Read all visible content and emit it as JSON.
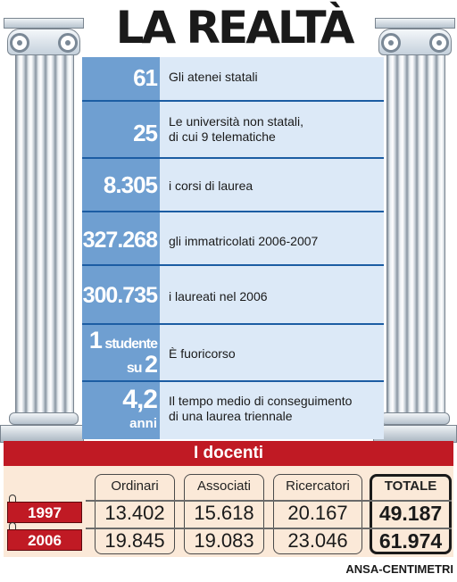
{
  "title": "LA REALTÀ",
  "facts": [
    {
      "num": "61",
      "text": "Gli atenei statali"
    },
    {
      "num": "25",
      "text": "Le università non statali,",
      "text2": "di cui 9 telematiche"
    },
    {
      "num": "8.305",
      "text": "i corsi di laurea"
    },
    {
      "num": "327.268",
      "text": "gli immatricolati 2006-2007"
    },
    {
      "num": "300.735",
      "text": "i laureati nel 2006"
    },
    {
      "num_a": "1",
      "num_b": "studente",
      "num_c": "su",
      "num_d": "2",
      "text": "È fuoricorso"
    },
    {
      "num": "4,2",
      "num_unit": "anni",
      "text": "Il tempo medio di conseguimento",
      "text2": "di una laurea triennale"
    }
  ],
  "docenti": {
    "heading": "I docenti",
    "columns": [
      "Ordinari",
      "Associati",
      "Ricercatori",
      "TOTALE"
    ],
    "rows": [
      {
        "year": "1997",
        "values": [
          "13.402",
          "15.618",
          "20.167",
          "49.187"
        ]
      },
      {
        "year": "2006",
        "values": [
          "19.845",
          "19.083",
          "23.046",
          "61.974"
        ]
      }
    ]
  },
  "credit": "ANSA-CENTIMETRI",
  "colors": {
    "number_bg": "#6f9fd1",
    "text_bg": "#dce9f7",
    "separator": "#1c5da3",
    "accent_red": "#c01a24",
    "docenti_bg": "#fbe9d8"
  }
}
